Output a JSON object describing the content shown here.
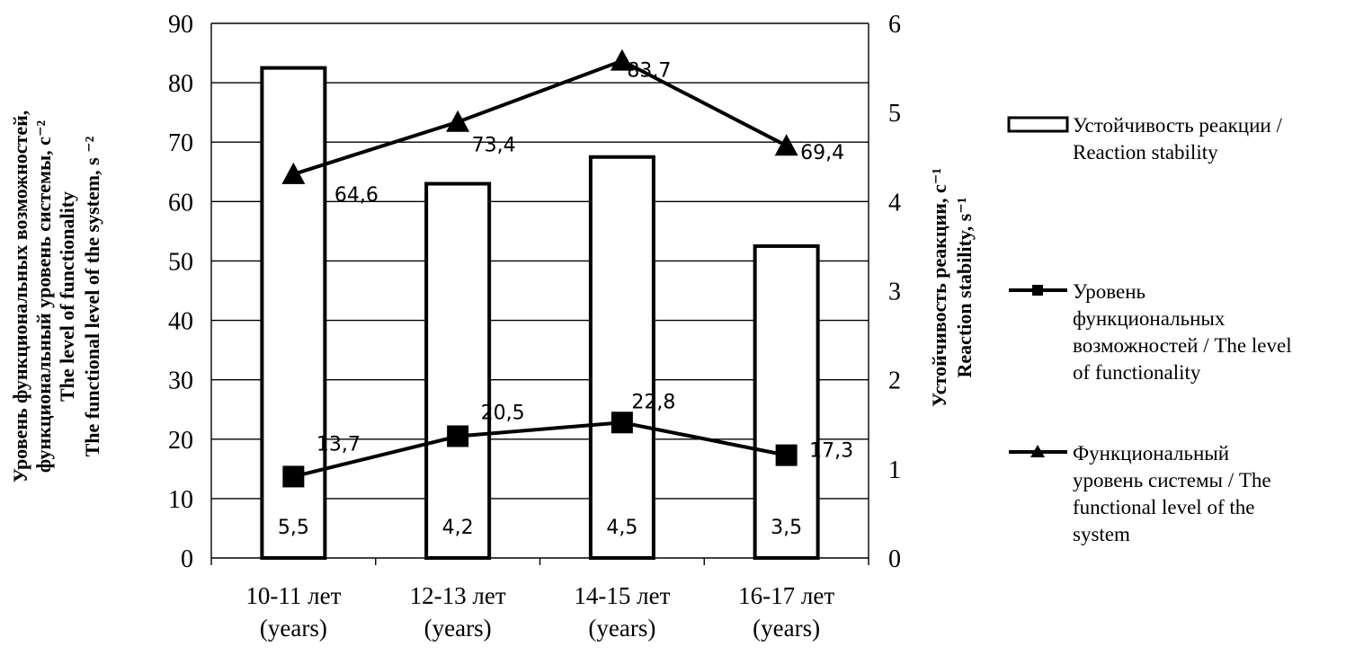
{
  "chart_data": {
    "type": "bar",
    "categories": [
      [
        "10-11 лет",
        "(years)"
      ],
      [
        "12-13 лет",
        "(years)"
      ],
      [
        "14-15 лет",
        "(years)"
      ],
      [
        "16-17 лет",
        "(years)"
      ]
    ],
    "y_left": {
      "title_lines": [
        "Уровень функциональных возможностей,",
        "функциональный уровень системы, c⁻²",
        "The level of functionality",
        "The functional level of the system, s ⁻²"
      ],
      "ylim": [
        0,
        90
      ],
      "ticks": [
        0,
        10,
        20,
        30,
        40,
        50,
        60,
        70,
        80,
        90
      ]
    },
    "y_right": {
      "title_lines": [
        "Устойчивость реакции, c⁻¹",
        "Reaction stability, s⁻¹"
      ],
      "ylim": [
        0,
        6
      ],
      "ticks": [
        0,
        1,
        2,
        3,
        4,
        5,
        6
      ]
    },
    "series": [
      {
        "name": "Устойчивость реакции / Reaction stability",
        "type": "bar",
        "axis": "right",
        "values": [
          5.5,
          4.2,
          4.5,
          3.5
        ],
        "labels": [
          "5,5",
          "4,2",
          "4,5",
          "3,5"
        ],
        "marker": "bar"
      },
      {
        "name": "Уровень функциональных возможностей / The level of functionality",
        "type": "line",
        "axis": "left",
        "values": [
          13.7,
          20.5,
          22.8,
          17.3
        ],
        "labels": [
          "13,7",
          "20,5",
          "22,8",
          "17,3"
        ],
        "marker": "square"
      },
      {
        "name": "Функциональный уровень системы / The functional level of the system",
        "type": "line",
        "axis": "left",
        "values": [
          64.6,
          73.4,
          83.7,
          69.4
        ],
        "labels": [
          "64,6",
          "73,4",
          "83,7",
          "69,4"
        ],
        "marker": "triangle"
      }
    ],
    "legend": {
      "position": "right",
      "entries": [
        [
          "Устойчивость реакции /",
          "Reaction stability"
        ],
        [
          "Уровень",
          "функциональных",
          "возможностей / The level",
          "of functionality"
        ],
        [
          "Функциональный",
          "уровень системы / The",
          "functional level of the",
          "system"
        ]
      ]
    },
    "grid": true,
    "colors": {
      "line": "#000000",
      "bar_fill": "#ffffff",
      "bar_edge": "#000000",
      "grid": "#000000"
    }
  }
}
